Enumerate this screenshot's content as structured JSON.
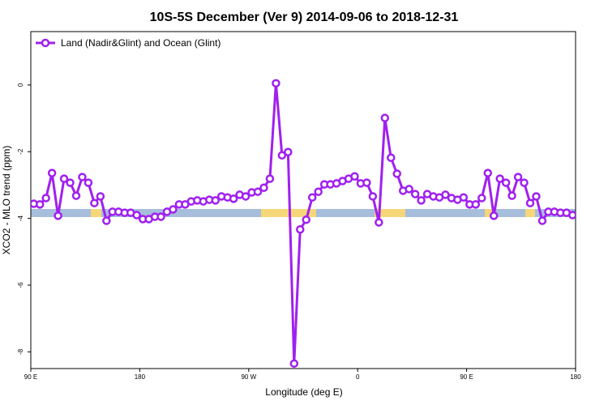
{
  "chart_data": {
    "type": "line",
    "title": "10S-5S December (Ver 9)   2014-09-06 to 2018-12-31",
    "xlabel": "Longitude (deg E)",
    "ylabel": "XCO2 - MLO trend (ppm)",
    "xlim": [
      90,
      540
    ],
    "ylim": [
      -8.5,
      1.6
    ],
    "xticks": [
      {
        "value": 90,
        "label": "90 E"
      },
      180,
      {
        "value": 270,
        "label": "90 W"
      },
      {
        "value": 360,
        "label": "0"
      },
      {
        "value": 450,
        "label": "90 E"
      },
      {
        "value": 540,
        "label": "180"
      }
    ],
    "yticks": [
      0,
      -2,
      -4,
      -6,
      -8
    ],
    "legend": "top-left",
    "x": [
      92.5,
      97.5,
      102.5,
      107.5,
      112.5,
      117.5,
      122.5,
      127.5,
      132.5,
      137.5,
      142.5,
      147.5,
      152.5,
      157.5,
      162.5,
      167.5,
      172.5,
      177.5,
      182.5,
      187.5,
      192.5,
      197.5,
      202.5,
      207.5,
      212.5,
      217.5,
      222.5,
      227.5,
      232.5,
      237.5,
      242.5,
      247.5,
      252.5,
      257.5,
      262.5,
      267.5,
      272.5,
      277.5,
      282.5,
      287.5,
      292.5,
      297.5,
      302.5,
      307.5,
      312.5,
      317.5,
      322.5,
      327.5,
      332.5,
      337.5,
      342.5,
      347.5,
      352.5,
      357.5,
      362.5,
      367.5,
      372.5,
      377.5,
      382.5,
      387.5,
      392.5,
      397.5,
      402.5,
      407.5,
      412.5,
      417.5,
      422.5,
      427.5,
      432.5,
      437.5,
      442.5,
      447.5,
      452.5,
      457.5,
      462.5,
      467.5,
      472.5,
      477.5,
      482.5,
      487.5,
      492.5,
      497.5,
      502.5,
      507.5,
      512.5,
      517.5,
      522.5,
      527.5,
      532.5,
      537.5
    ],
    "series": [
      {
        "name": "Land (Nadir&Glint) and Ocean (Glint)",
        "color": "#a020f0",
        "values": [
          -3.56,
          -3.58,
          -3.39,
          -2.64,
          -3.92,
          -2.81,
          -2.93,
          -3.32,
          -2.76,
          -2.93,
          -3.54,
          -3.34,
          -4.07,
          -3.8,
          -3.8,
          -3.83,
          -3.83,
          -3.9,
          -4.02,
          -4.02,
          -3.95,
          -3.95,
          -3.8,
          -3.73,
          -3.58,
          -3.58,
          -3.49,
          -3.46,
          -3.49,
          -3.44,
          -3.46,
          -3.34,
          -3.37,
          -3.41,
          -3.29,
          -3.34,
          -3.22,
          -3.2,
          -3.08,
          -2.81,
          0.05,
          -2.11,
          -2.01,
          -8.35,
          -4.33,
          -4.04,
          -3.37,
          -3.2,
          -2.98,
          -2.98,
          -2.95,
          -2.88,
          -2.81,
          -2.74,
          -2.95,
          -2.93,
          -3.34,
          -4.12,
          -0.99,
          -2.18,
          -2.66,
          -3.17,
          -3.12,
          -3.27,
          -3.46,
          -3.27,
          -3.34,
          -3.37,
          -3.29,
          -3.39,
          -3.44,
          -3.37,
          -3.58,
          -3.58,
          -3.39,
          -2.64,
          -3.92,
          -2.81,
          -2.93,
          -3.32,
          -2.76,
          -2.93,
          -3.54,
          -3.34,
          -4.07,
          -3.8,
          -3.8,
          -3.83,
          -3.83,
          -3.9
        ]
      }
    ]
  }
}
